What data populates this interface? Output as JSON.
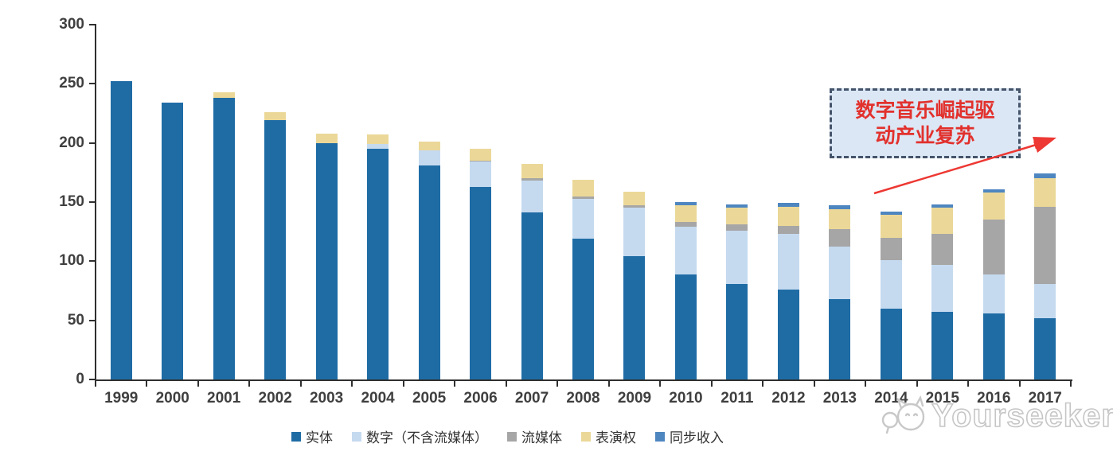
{
  "chart_data": {
    "type": "bar",
    "stacked": true,
    "title": "",
    "xlabel": "",
    "ylabel": "",
    "categories": [
      "1999",
      "2000",
      "2001",
      "2002",
      "2003",
      "2004",
      "2005",
      "2006",
      "2007",
      "2008",
      "2009",
      "2010",
      "2011",
      "2012",
      "2013",
      "2014",
      "2015",
      "2016",
      "2017"
    ],
    "series": [
      {
        "name": "实体",
        "color": "#1f6ca5",
        "values": [
          252,
          234,
          238,
          219,
          200,
          195,
          181,
          163,
          141,
          119,
          104,
          89,
          81,
          76,
          68,
          60,
          57,
          56,
          52
        ]
      },
      {
        "name": "数字（不含流媒体）",
        "color": "#c5daef",
        "values": [
          0,
          0,
          0,
          0,
          0,
          4,
          13,
          21,
          27,
          34,
          41,
          40,
          45,
          47,
          44,
          41,
          40,
          33,
          29
        ]
      },
      {
        "name": "流媒体",
        "color": "#a6a6a6",
        "values": [
          0,
          0,
          0,
          0,
          0,
          0,
          0,
          1,
          2,
          2,
          2,
          4,
          5,
          7,
          15,
          19,
          26,
          46,
          65
        ]
      },
      {
        "name": "表演权",
        "color": "#ebd898",
        "values": [
          0,
          0,
          5,
          7,
          8,
          8,
          7,
          10,
          12,
          14,
          12,
          14,
          14,
          16,
          17,
          19,
          22,
          23,
          24
        ]
      },
      {
        "name": "同步收入",
        "color": "#4e86c0",
        "values": [
          0,
          0,
          0,
          0,
          0,
          0,
          0,
          0,
          0,
          0,
          0,
          3,
          3,
          3,
          3,
          3,
          3,
          3,
          4
        ]
      }
    ],
    "ylim": [
      0,
      300
    ],
    "yticks": [
      0,
      50,
      100,
      150,
      200,
      250,
      300
    ],
    "grid": false,
    "legend_position": "bottom"
  },
  "annotation": {
    "line1": "数字音乐崛起驱",
    "line2": "动产业复苏",
    "full_text": "数字音乐崛起驱动产业复苏",
    "box_fill": "#dbe7f5",
    "border_color": "#44546a",
    "text_color": "#e2312d",
    "arrow_color": "#ed3833"
  },
  "watermark": {
    "text": "Yourseeker",
    "color": "#c6c6c6",
    "logo": "cat-mascot-logo"
  },
  "axis": {
    "line_color": "#2f2f2f",
    "label_color": "#3f3f3f"
  }
}
